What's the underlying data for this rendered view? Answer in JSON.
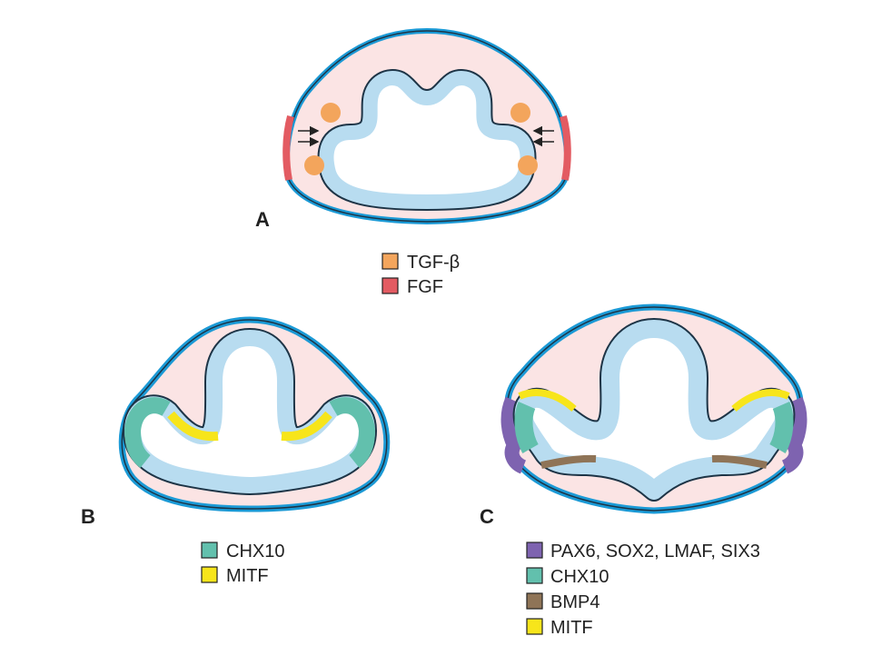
{
  "colors": {
    "outer_ectoderm": "#1b9ad6",
    "outline": "#1d3446",
    "mesenchyme": "#fbe4e4",
    "neuroepithelium": "#b8dcf0",
    "tgf_beta": "#f3a55c",
    "fgf": "#e35b62",
    "pax6_group": "#7e63b0",
    "chx10": "#62c0ad",
    "bmp4": "#8f7457",
    "mitf": "#f7e51b"
  },
  "panels": {
    "a": {
      "label": "A",
      "legend": [
        {
          "label": "TGF-β",
          "color": "#f3a55c"
        },
        {
          "label": "FGF",
          "color": "#e35b62"
        }
      ]
    },
    "b": {
      "label": "B",
      "legend": [
        {
          "label": "CHX10",
          "color": "#62c0ad"
        },
        {
          "label": "MITF",
          "color": "#f7e51b"
        }
      ]
    },
    "c": {
      "label": "C",
      "legend": [
        {
          "label": "PAX6, SOX2, LMAF, SIX3",
          "color": "#7e63b0"
        },
        {
          "label": "CHX10",
          "color": "#62c0ad"
        },
        {
          "label": "BMP4",
          "color": "#8f7457"
        },
        {
          "label": "MITF",
          "color": "#f7e51b"
        }
      ]
    }
  }
}
